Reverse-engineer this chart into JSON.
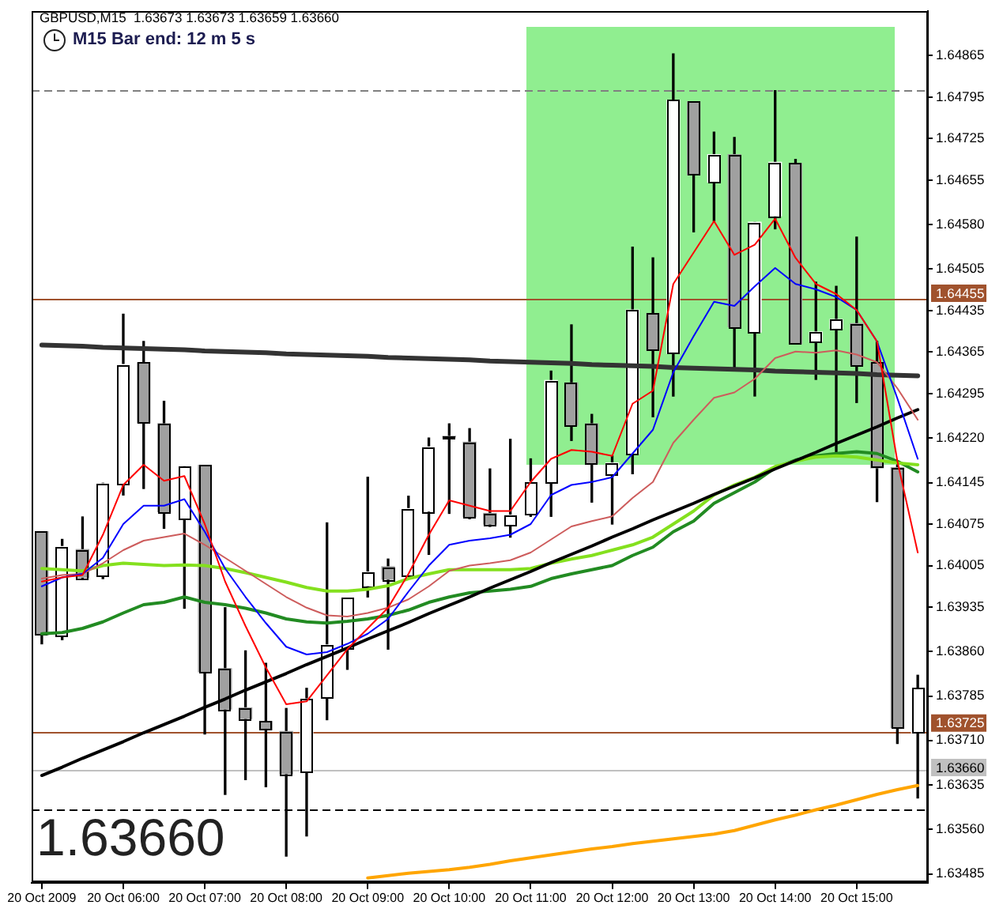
{
  "chart_data": {
    "type": "candlestick",
    "title": "GBPUSD,M15  1.63673 1.63673 1.63659 1.63660",
    "annotations": [
      "M15 Bar end: 12 m 5 s",
      "1.63660"
    ],
    "categories": [
      "20 Oct 2009",
      null,
      null,
      null,
      "20 Oct 06:00",
      null,
      null,
      null,
      "20 Oct 07:00",
      null,
      null,
      null,
      "20 Oct 08:00",
      null,
      null,
      null,
      "20 Oct 09:00",
      null,
      null,
      null,
      "20 Oct 10:00",
      null,
      null,
      null,
      "20 Oct 11:00",
      null,
      null,
      null,
      "20 Oct 12:00",
      null,
      null,
      null,
      "20 Oct 13:00",
      null,
      null,
      null,
      "20 Oct 14:00",
      null,
      null,
      null,
      "20 Oct 15:00",
      null,
      null,
      null
    ],
    "ohlc": [
      [
        1.64062,
        1.64062,
        1.63873,
        1.63888
      ],
      [
        1.63888,
        1.64049,
        1.6388,
        1.64037
      ],
      [
        1.64032,
        1.64087,
        1.63983,
        1.63985
      ],
      [
        1.63989,
        1.64144,
        1.63983,
        1.64143
      ],
      [
        1.64143,
        1.64429,
        1.64124,
        1.64344
      ],
      [
        1.64347,
        1.64383,
        1.64135,
        1.64246
      ],
      [
        1.64244,
        1.64282,
        1.64068,
        1.64096
      ],
      [
        1.64084,
        1.64172,
        1.63933,
        1.64172
      ],
      [
        1.64174,
        1.64174,
        1.63721,
        1.63826
      ],
      [
        1.63831,
        1.63934,
        1.63619,
        1.63763
      ],
      [
        1.63765,
        1.63861,
        1.63644,
        1.63747
      ],
      [
        1.63742,
        1.6384,
        1.63632,
        1.63728
      ],
      [
        1.63725,
        1.63764,
        1.63515,
        1.63654
      ],
      [
        1.63657,
        1.63798,
        1.63549,
        1.6378
      ],
      [
        1.63784,
        1.64077,
        1.63745,
        1.63871
      ],
      [
        1.63864,
        1.6395,
        1.6383,
        1.6395
      ],
      [
        1.63971,
        1.64154,
        1.63952,
        1.63994
      ],
      [
        1.64003,
        1.64016,
        1.63864,
        1.63982
      ],
      [
        1.6399,
        1.64122,
        1.6399,
        1.64101
      ],
      [
        1.64097,
        1.6422,
        1.64024,
        1.64205
      ],
      [
        1.64223,
        1.64244,
        1.64093,
        1.64222
      ],
      [
        1.64213,
        1.64236,
        1.64084,
        1.64088
      ],
      [
        1.64093,
        1.64168,
        1.64071,
        1.64075
      ],
      [
        1.64073,
        1.64218,
        1.64053,
        1.6409
      ],
      [
        1.64093,
        1.64185,
        1.64088,
        1.64146
      ],
      [
        1.64146,
        1.64333,
        1.64088,
        1.64317
      ],
      [
        1.64313,
        1.64411,
        1.64216,
        1.64242
      ],
      [
        1.64244,
        1.6426,
        1.64112,
        1.64178
      ],
      [
        1.6416,
        1.6419,
        1.64075,
        1.64178
      ],
      [
        1.64194,
        1.64542,
        1.6416,
        1.64436
      ],
      [
        1.6443,
        1.64524,
        1.64256,
        1.64368
      ],
      [
        1.64363,
        1.64868,
        1.64291,
        1.6479
      ],
      [
        1.64787,
        1.64787,
        1.64568,
        1.64664
      ],
      [
        1.64652,
        1.64736,
        1.64586,
        1.64698
      ],
      [
        1.64698,
        1.64727,
        1.64339,
        1.64408
      ],
      [
        1.64399,
        1.64584,
        1.64291,
        1.64584
      ],
      [
        1.64595,
        1.64806,
        1.64573,
        1.64685
      ],
      [
        1.64683,
        1.6469,
        1.64379,
        1.64379
      ],
      [
        1.64383,
        1.64483,
        1.64319,
        1.64399
      ],
      [
        1.64405,
        1.64476,
        1.6419,
        1.6442
      ],
      [
        1.64413,
        1.64559,
        1.6428,
        1.64344
      ],
      [
        1.64347,
        1.64383,
        1.64113,
        1.6417
      ],
      [
        1.6417,
        1.64181,
        1.63705,
        1.63732
      ],
      [
        1.63723,
        1.6382,
        1.63613,
        1.63798
      ]
    ],
    "colors": [
      "#a0a0a0",
      "#ffffff",
      "#a0a0a0",
      "#ffffff",
      "#ffffff",
      "#a0a0a0",
      "#a0a0a0",
      "#ffffff",
      "#a0a0a0",
      "#a0a0a0",
      "#a0a0a0",
      "#a0a0a0",
      "#a0a0a0",
      "#ffffff",
      "#ffffff",
      "#ffffff",
      "#ffffff",
      "#a0a0a0",
      "#ffffff",
      "#ffffff",
      "#a0a0a0",
      "#a0a0a0",
      "#a0a0a0",
      "#ffffff",
      "#ffffff",
      "#ffffff",
      "#a0a0a0",
      "#a0a0a0",
      "#ffffff",
      "#ffffff",
      "#a0a0a0",
      "#ffffff",
      "#a0a0a0",
      "#ffffff",
      "#a0a0a0",
      "#ffffff",
      "#ffffff",
      "#a0a0a0",
      "#ffffff",
      "#ffffff",
      "#a0a0a0",
      "#a0a0a0",
      "#a0a0a0",
      "#ffffff"
    ],
    "series": [
      {
        "type": "line",
        "color": "#ff0000",
        "values": [
          1.63978,
          1.63985,
          1.63989,
          1.64057,
          1.64141,
          1.64175,
          1.64148,
          1.64156,
          1.64075,
          1.63978,
          1.63903,
          1.63833,
          1.63771,
          1.63776,
          1.6382,
          1.63864,
          1.63899,
          1.63934,
          1.63991,
          1.64057,
          1.64115,
          1.64106,
          1.64097,
          1.64097,
          1.64146,
          1.64185,
          1.642,
          1.64197,
          1.6419,
          1.64278,
          1.643,
          1.6448,
          1.64533,
          1.64586,
          1.64529,
          1.64546,
          1.6459,
          1.64524,
          1.6448,
          1.64463,
          1.64436,
          1.64383,
          1.64181,
          1.64027
        ]
      },
      {
        "type": "line",
        "color": "#0000ff",
        "values": [
          1.6397,
          1.63985,
          1.63991,
          1.64018,
          1.64075,
          1.64106,
          1.64106,
          1.64117,
          1.64062,
          1.64,
          1.63952,
          1.63908,
          1.63868,
          1.63855,
          1.63859,
          1.63873,
          1.6389,
          1.63915,
          1.63961,
          1.64005,
          1.6404,
          1.64047,
          1.64051,
          1.64057,
          1.64075,
          1.64124,
          1.64141,
          1.64146,
          1.64154,
          1.64194,
          1.64234,
          1.64331,
          1.64392,
          1.6445,
          1.64443,
          1.64476,
          1.64507,
          1.6448,
          1.64471,
          1.64458,
          1.64436,
          1.64383,
          1.64287,
          1.64185
        ]
      },
      {
        "type": "line",
        "color": "#cd5c5c",
        "values": [
          1.63983,
          1.63989,
          1.63991,
          1.64009,
          1.64031,
          1.64047,
          1.64053,
          1.64059,
          1.6404,
          1.64018,
          1.63996,
          1.63974,
          1.63952,
          1.63934,
          1.63921,
          1.63919,
          1.63925,
          1.63934,
          1.63948,
          1.6397,
          1.63996,
          1.64005,
          1.64009,
          1.64014,
          1.64027,
          1.64049,
          1.64071,
          1.6408,
          1.64088,
          1.64119,
          1.64146,
          1.64212,
          1.64251,
          1.64288,
          1.64297,
          1.6432,
          1.64355,
          1.64366,
          1.64364,
          1.64368,
          1.64361,
          1.64348,
          1.64304,
          1.64251
        ]
      },
      {
        "type": "line",
        "color": "#84e01e",
        "values": [
          1.64,
          1.63998,
          1.63996,
          1.64005,
          1.64009,
          1.64007,
          1.64005,
          1.64006,
          1.64005,
          1.64,
          1.63993,
          1.63985,
          1.63977,
          1.63968,
          1.63962,
          1.63962,
          1.63965,
          1.63971,
          1.63983,
          1.63991,
          1.63998,
          1.63998,
          1.63998,
          1.63998,
          1.64,
          1.64009,
          1.64016,
          1.64022,
          1.64031,
          1.6404,
          1.64053,
          1.64075,
          1.64097,
          1.64124,
          1.64141,
          1.64154,
          1.64172,
          1.64181,
          1.64188,
          1.6419,
          1.64188,
          1.64183,
          1.64178,
          1.64175
        ]
      },
      {
        "type": "line",
        "color": "#228b22",
        "values": [
          1.6389,
          1.63892,
          1.63899,
          1.6391,
          1.63925,
          1.63939,
          1.63943,
          1.63952,
          1.63943,
          1.63939,
          1.63933,
          1.63925,
          1.63915,
          1.6391,
          1.63908,
          1.63911,
          1.63915,
          1.63921,
          1.6393,
          1.63943,
          1.63952,
          1.63959,
          1.63962,
          1.63965,
          1.6397,
          1.63983,
          1.63991,
          1.63998,
          1.64005,
          1.64022,
          1.64036,
          1.64062,
          1.6408,
          1.6411,
          1.64128,
          1.64146,
          1.6417,
          1.64183,
          1.6419,
          1.64194,
          1.64197,
          1.64194,
          1.64181,
          1.64163
        ]
      },
      {
        "type": "line",
        "color": "#ffa500",
        "values": [
          null,
          null,
          null,
          null,
          null,
          null,
          null,
          null,
          null,
          null,
          null,
          null,
          null,
          null,
          null,
          null,
          1.63478,
          1.63482,
          1.63486,
          1.63489,
          1.63492,
          1.63496,
          1.63501,
          1.63507,
          1.63512,
          1.63517,
          1.63522,
          1.63527,
          1.63531,
          1.63536,
          1.6354,
          1.63544,
          1.63548,
          1.63552,
          1.63558,
          1.63567,
          1.63576,
          1.63584,
          1.63593,
          1.63601,
          1.6361,
          1.63619,
          1.63627,
          1.63634
        ]
      },
      {
        "type": "line",
        "color": "#333333",
        "values": [
          1.64377,
          1.64376,
          1.64375,
          1.64373,
          1.64372,
          1.64371,
          1.6437,
          1.64369,
          1.64367,
          1.64366,
          1.64365,
          1.64364,
          1.64362,
          1.64361,
          1.6436,
          1.64359,
          1.64358,
          1.64356,
          1.64355,
          1.64354,
          1.64353,
          1.64352,
          1.6435,
          1.64349,
          1.64348,
          1.64347,
          1.64346,
          1.64344,
          1.64343,
          1.64342,
          1.64341,
          1.64339,
          1.64338,
          1.64337,
          1.64336,
          1.64335,
          1.64333,
          1.64332,
          1.64331,
          1.6433,
          1.64329,
          1.64327,
          1.64326,
          1.64325
        ]
      },
      {
        "type": "line",
        "color": "#000000",
        "values": [
          1.63651,
          1.63665,
          1.6368,
          1.63694,
          1.63708,
          1.63723,
          1.63737,
          1.63751,
          1.63766,
          1.6378,
          1.63795,
          1.63809,
          1.63823,
          1.63838,
          1.63852,
          1.63866,
          1.63881,
          1.63895,
          1.63909,
          1.63924,
          1.63938,
          1.63952,
          1.63967,
          1.63981,
          1.63995,
          1.6401,
          1.64024,
          1.64038,
          1.64053,
          1.64067,
          1.64082,
          1.64096,
          1.6411,
          1.64125,
          1.64139,
          1.64153,
          1.64168,
          1.64182,
          1.64196,
          1.64211,
          1.64225,
          1.64239,
          1.64254,
          1.64268
        ]
      }
    ],
    "ylim": [
      1.6347,
      1.6494
    ],
    "yticks": [
      1.63485,
      {
        "value": 1.6356,
        "label": "1.63560"
      },
      1.63635,
      {
        "value": 1.6371,
        "label": "1.63710"
      },
      1.63785,
      {
        "value": 1.6386,
        "label": "1.63860"
      },
      1.63935,
      1.64005,
      1.64075,
      1.64145,
      {
        "value": 1.6422,
        "label": "1.64220"
      },
      1.64295,
      1.64365,
      1.64435,
      1.64505,
      {
        "value": 1.6458,
        "label": "1.64580"
      },
      1.64655,
      1.64725,
      1.64795,
      1.64865
    ],
    "ref_lines": [
      {
        "axis": "y",
        "value": 1.64806,
        "color": "#808080",
        "line_style": "dashed"
      },
      {
        "axis": "y",
        "value": 1.64455,
        "label": "1.64455",
        "color": "#a0522d"
      },
      {
        "axis": "y",
        "value": 1.63725,
        "label": "1.63725",
        "color": "#a0522d"
      },
      {
        "axis": "y",
        "value": 1.6366,
        "label": "1.63660",
        "color": "#c0c0c0"
      },
      {
        "axis": "y",
        "value": 1.63594,
        "color": "#000000",
        "line_style": "dashed"
      }
    ]
  }
}
